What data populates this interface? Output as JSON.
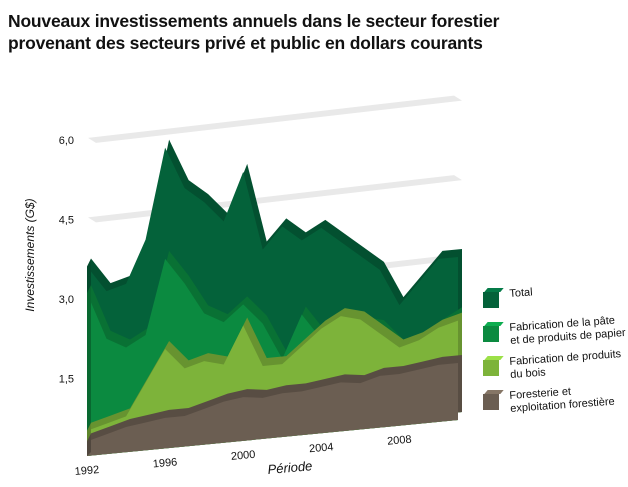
{
  "title_lines": [
    "Nouveaux investissements annuels dans le secteur forestier",
    "provenant des secteurs privé et public en dollars courants"
  ],
  "chart_data": {
    "type": "area",
    "title": "Nouveaux investissements annuels dans le secteur forestier provenant des secteurs privé et public en dollars courants",
    "xlabel": "Période",
    "ylabel": "Investissements (G$)",
    "ylim": [
      0,
      6.0
    ],
    "yticks": [
      "1,5",
      "3,0",
      "4,5",
      "6,0"
    ],
    "ytick_values": [
      1.5,
      3.0,
      4.5,
      6.0
    ],
    "xticks": [
      "1992",
      "1996",
      "2000",
      "2004",
      "2008"
    ],
    "x": [
      1992,
      1993,
      1994,
      1995,
      1996,
      1997,
      1998,
      1999,
      2000,
      2001,
      2002,
      2003,
      2004,
      2005,
      2006,
      2007,
      2008,
      2009,
      2010,
      2011
    ],
    "grid": true,
    "legend": "right",
    "style": "3d",
    "series": [
      {
        "name": "Total",
        "color": "#04623a",
        "values": [
          3.5,
          3.0,
          3.1,
          3.9,
          5.6,
          4.8,
          4.5,
          4.1,
          5.0,
          3.5,
          3.9,
          3.6,
          3.8,
          3.5,
          3.2,
          2.9,
          2.2,
          2.6,
          3.0,
          3.0
        ]
      },
      {
        "name": "Fabrication de la pâte et de produits de papier",
        "color": "#0b8a40",
        "values": [
          3.0,
          2.1,
          1.9,
          2.1,
          3.5,
          3.0,
          2.4,
          2.2,
          2.5,
          2.1,
          1.4,
          2.2,
          1.7,
          2.0,
          1.9,
          1.8,
          1.4,
          1.4,
          1.7,
          1.9
        ]
      },
      {
        "name": "Fabrication de produits du bois",
        "color": "#7db33a",
        "values": [
          0.4,
          0.5,
          0.6,
          1.2,
          1.8,
          1.4,
          1.5,
          1.4,
          2.1,
          1.3,
          1.3,
          1.6,
          1.9,
          2.1,
          2.0,
          1.7,
          1.4,
          1.5,
          1.7,
          1.8
        ]
      },
      {
        "name": "Foresterie et exploitation forestière",
        "color": "#6b5e52",
        "values": [
          0.2,
          0.3,
          0.4,
          0.45,
          0.5,
          0.5,
          0.6,
          0.7,
          0.75,
          0.7,
          0.75,
          0.75,
          0.8,
          0.85,
          0.8,
          0.9,
          0.9,
          0.95,
          1.0,
          1.0
        ]
      }
    ]
  },
  "legend": [
    {
      "lines": [
        "Total"
      ],
      "color": "#04623a"
    },
    {
      "lines": [
        "Fabrication de la pâte",
        "et de produits de papier"
      ],
      "color": "#0b8a40"
    },
    {
      "lines": [
        "Fabrication de produits",
        "du bois"
      ],
      "color": "#7db33a"
    },
    {
      "lines": [
        "Foresterie et",
        "exploitation forestière"
      ],
      "color": "#6b5e52"
    }
  ]
}
